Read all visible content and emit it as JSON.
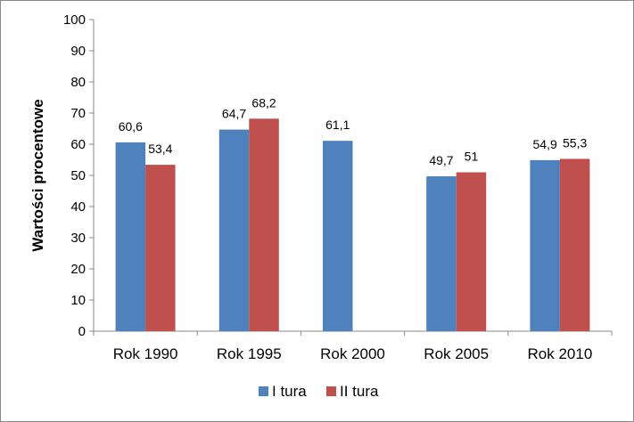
{
  "chart_data": {
    "type": "bar",
    "title": "",
    "xlabel": "",
    "ylabel": "Wartości procentowe",
    "ylim": [
      0,
      100
    ],
    "yticks": [
      0,
      10,
      20,
      30,
      40,
      50,
      60,
      70,
      80,
      90,
      100
    ],
    "grid": false,
    "legend_position": "bottom",
    "categories": [
      "Rok 1990",
      "Rok 1995",
      "Rok 2000",
      "Rok 2005",
      "Rok 2010"
    ],
    "series": [
      {
        "name": "I tura",
        "color": "#4f81bd",
        "values": [
          60.6,
          64.7,
          61.1,
          49.7,
          54.9
        ],
        "labels": [
          "60,6",
          "64,7",
          "61,1",
          "49,7",
          "54,9"
        ]
      },
      {
        "name": "II tura",
        "color": "#c0504d",
        "values": [
          53.4,
          68.2,
          null,
          51,
          55.3
        ],
        "labels": [
          "53,4",
          "68,2",
          null,
          "51",
          "55,3"
        ]
      }
    ]
  }
}
